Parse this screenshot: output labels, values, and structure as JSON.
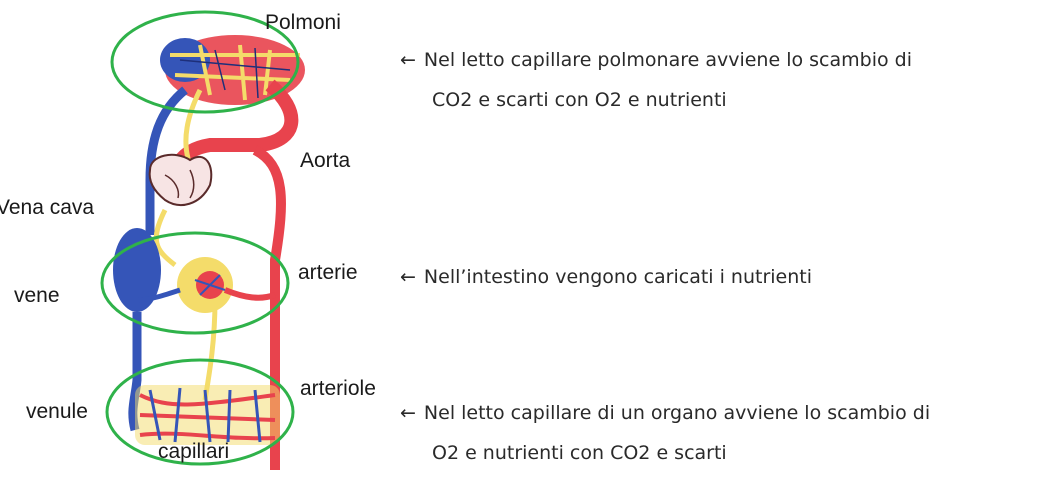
{
  "labels": {
    "polmoni": "Polmoni",
    "aorta": "Aorta",
    "vena_cava": "Vena cava",
    "vene": "vene",
    "arterie": "arterie",
    "arteriole": "arteriole",
    "venule": "venule",
    "capillari": "capillari"
  },
  "notes": {
    "arrow": "←",
    "lung_line1": "Nel letto capillare polmonare avviene lo scambio di",
    "lung_line2": "CO2 e scarti con O2 e nutrienti",
    "intestine": "Nell’intestino vengono caricati i nutrienti",
    "organ_line1": "Nel letto capillare di un organo avviene lo scambio di",
    "organ_line2": "O2 e nutrienti con CO2 e scarti"
  },
  "colors": {
    "artery": "#e8434d",
    "vein": "#3555b8",
    "lymph": "#f4dc6a",
    "highlight": "#2fb24a"
  }
}
